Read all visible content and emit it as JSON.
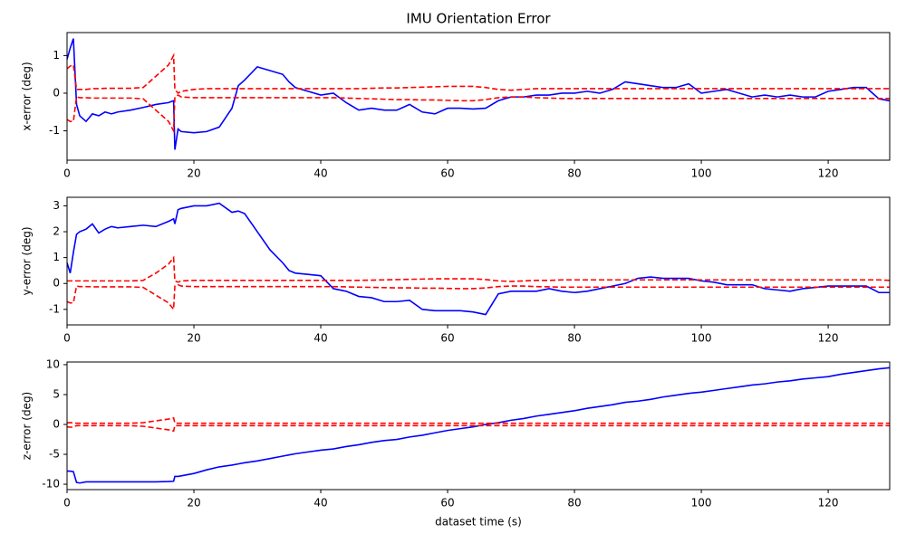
{
  "chart_data": [
    {
      "type": "line",
      "title": "IMU Orientation Error",
      "ylabel": "x-error (deg)",
      "x": [
        0,
        0.5,
        1,
        1.5,
        2,
        3,
        4,
        5,
        6,
        7,
        8,
        10,
        12,
        14,
        16,
        16.8,
        17,
        17.5,
        18,
        20,
        22,
        24,
        26,
        27,
        28,
        30,
        32,
        34,
        35,
        36,
        38,
        40,
        42,
        44,
        46,
        48,
        50,
        52,
        54,
        56,
        58,
        60,
        62,
        64,
        66,
        68,
        70,
        72,
        74,
        76,
        78,
        80,
        82,
        84,
        86,
        88,
        90,
        92,
        94,
        96,
        98,
        100,
        102,
        104,
        106,
        108,
        110,
        112,
        114,
        116,
        118,
        120,
        122,
        124,
        126,
        128,
        129.7
      ],
      "series": [
        {
          "color": "#0000ff",
          "linestyle": "solid",
          "values": [
            0.9,
            1.2,
            1.45,
            -0.3,
            -0.6,
            -0.75,
            -0.55,
            -0.6,
            -0.5,
            -0.55,
            -0.5,
            -0.45,
            -0.38,
            -0.3,
            -0.25,
            -0.2,
            -1.5,
            -0.95,
            -1.02,
            -1.05,
            -1.02,
            -0.9,
            -0.4,
            0.2,
            0.35,
            0.7,
            0.6,
            0.5,
            0.3,
            0.15,
            0.05,
            -0.05,
            0.0,
            -0.25,
            -0.45,
            -0.4,
            -0.45,
            -0.45,
            -0.3,
            -0.5,
            -0.55,
            -0.4,
            -0.4,
            -0.42,
            -0.4,
            -0.2,
            -0.1,
            -0.1,
            -0.05,
            -0.05,
            0.0,
            0.0,
            0.05,
            0.0,
            0.1,
            0.3,
            0.25,
            0.2,
            0.15,
            0.15,
            0.25,
            0.0,
            0.05,
            0.1,
            0.0,
            -0.1,
            -0.05,
            -0.1,
            -0.05,
            -0.1,
            -0.1,
            0.05,
            0.1,
            0.15,
            0.15,
            -0.15,
            -0.2
          ]
        },
        {
          "color": "#ff0000",
          "linestyle": "dashed",
          "values": [
            0.65,
            0.72,
            0.75,
            0.1,
            0.1,
            0.1,
            0.12,
            0.12,
            0.13,
            0.13,
            0.13,
            0.13,
            0.15,
            0.45,
            0.75,
            1.0,
            0.1,
            0.0,
            0.05,
            0.1,
            0.12,
            0.12,
            0.12,
            0.12,
            0.12,
            0.12,
            0.12,
            0.12,
            0.12,
            0.12,
            0.12,
            0.12,
            0.12,
            0.12,
            0.12,
            0.13,
            0.14,
            0.14,
            0.15,
            0.16,
            0.17,
            0.18,
            0.18,
            0.18,
            0.15,
            0.1,
            0.08,
            0.1,
            0.12,
            0.12,
            0.12,
            0.12,
            0.12,
            0.12,
            0.12,
            0.12,
            0.12,
            0.12,
            0.12,
            0.12,
            0.12,
            0.12,
            0.12,
            0.12,
            0.12,
            0.12,
            0.12,
            0.12,
            0.12,
            0.12,
            0.12,
            0.12,
            0.12,
            0.12,
            0.12,
            0.12,
            0.12
          ]
        },
        {
          "color": "#ff0000",
          "linestyle": "dashed",
          "values": [
            -0.7,
            -0.75,
            -0.75,
            -0.1,
            -0.12,
            -0.12,
            -0.13,
            -0.13,
            -0.13,
            -0.13,
            -0.13,
            -0.13,
            -0.15,
            -0.45,
            -0.75,
            -1.0,
            -0.1,
            -0.05,
            -0.1,
            -0.12,
            -0.12,
            -0.12,
            -0.12,
            -0.12,
            -0.12,
            -0.12,
            -0.12,
            -0.12,
            -0.12,
            -0.12,
            -0.12,
            -0.12,
            -0.12,
            -0.13,
            -0.14,
            -0.15,
            -0.16,
            -0.17,
            -0.17,
            -0.18,
            -0.18,
            -0.19,
            -0.2,
            -0.2,
            -0.17,
            -0.12,
            -0.1,
            -0.1,
            -0.12,
            -0.13,
            -0.14,
            -0.14,
            -0.14,
            -0.14,
            -0.14,
            -0.14,
            -0.14,
            -0.14,
            -0.14,
            -0.14,
            -0.14,
            -0.14,
            -0.14,
            -0.14,
            -0.14,
            -0.14,
            -0.14,
            -0.14,
            -0.14,
            -0.14,
            -0.14,
            -0.14,
            -0.14,
            -0.14,
            -0.14,
            -0.14,
            -0.14
          ]
        }
      ],
      "xlim": [
        0,
        129.7
      ],
      "xticks": [
        0,
        20,
        40,
        60,
        80,
        100,
        120
      ],
      "ylim": [
        -1.78,
        1.61
      ],
      "yticks": [
        -1,
        0,
        1
      ],
      "grid": false
    },
    {
      "type": "line",
      "ylabel": "y-error (deg)",
      "x": [
        0,
        0.5,
        1,
        1.5,
        2,
        3,
        4,
        5,
        6,
        7,
        8,
        10,
        12,
        14,
        16,
        16.8,
        17,
        17.5,
        18,
        20,
        22,
        24,
        26,
        27,
        28,
        30,
        32,
        34,
        35,
        36,
        38,
        40,
        42,
        44,
        46,
        48,
        50,
        52,
        54,
        56,
        58,
        60,
        62,
        64,
        66,
        68,
        70,
        72,
        74,
        76,
        78,
        80,
        82,
        84,
        86,
        88,
        90,
        92,
        94,
        96,
        98,
        100,
        102,
        104,
        106,
        108,
        110,
        112,
        114,
        116,
        118,
        120,
        122,
        124,
        126,
        128,
        129.7
      ],
      "series": [
        {
          "color": "#0000ff",
          "linestyle": "solid",
          "values": [
            0.8,
            0.4,
            1.2,
            1.9,
            2.0,
            2.1,
            2.3,
            1.95,
            2.1,
            2.2,
            2.15,
            2.2,
            2.25,
            2.2,
            2.4,
            2.5,
            2.3,
            2.85,
            2.9,
            3.0,
            3.0,
            3.1,
            2.75,
            2.8,
            2.7,
            2.0,
            1.3,
            0.8,
            0.5,
            0.4,
            0.35,
            0.3,
            -0.2,
            -0.3,
            -0.5,
            -0.55,
            -0.7,
            -0.7,
            -0.65,
            -1.0,
            -1.05,
            -1.05,
            -1.05,
            -1.1,
            -1.2,
            -0.4,
            -0.3,
            -0.3,
            -0.3,
            -0.2,
            -0.3,
            -0.35,
            -0.3,
            -0.2,
            -0.1,
            0.0,
            0.2,
            0.25,
            0.2,
            0.2,
            0.2,
            0.1,
            0.05,
            -0.05,
            -0.05,
            -0.05,
            -0.2,
            -0.25,
            -0.3,
            -0.2,
            -0.15,
            -0.1,
            -0.1,
            -0.1,
            -0.1,
            -0.35,
            -0.35
          ]
        },
        {
          "color": "#ff0000",
          "linestyle": "dashed",
          "values": [
            0.1,
            0.1,
            0.1,
            0.1,
            0.1,
            0.1,
            0.1,
            0.1,
            0.1,
            0.1,
            0.1,
            0.1,
            0.12,
            0.4,
            0.75,
            1.0,
            0.1,
            0.05,
            0.1,
            0.12,
            0.12,
            0.12,
            0.12,
            0.12,
            0.12,
            0.12,
            0.12,
            0.12,
            0.12,
            0.12,
            0.12,
            0.12,
            0.12,
            0.12,
            0.12,
            0.13,
            0.14,
            0.15,
            0.16,
            0.17,
            0.18,
            0.18,
            0.18,
            0.18,
            0.15,
            0.1,
            0.08,
            0.1,
            0.12,
            0.12,
            0.14,
            0.14,
            0.14,
            0.14,
            0.14,
            0.14,
            0.14,
            0.14,
            0.14,
            0.14,
            0.14,
            0.14,
            0.14,
            0.14,
            0.14,
            0.14,
            0.14,
            0.14,
            0.14,
            0.14,
            0.14,
            0.14,
            0.14,
            0.14,
            0.14,
            0.14,
            0.12
          ]
        },
        {
          "color": "#ff0000",
          "linestyle": "dashed",
          "values": [
            -0.7,
            -0.75,
            -0.75,
            -0.1,
            -0.12,
            -0.12,
            -0.13,
            -0.13,
            -0.13,
            -0.13,
            -0.13,
            -0.13,
            -0.15,
            -0.45,
            -0.75,
            -1.0,
            -0.1,
            -0.05,
            -0.1,
            -0.12,
            -0.12,
            -0.12,
            -0.12,
            -0.12,
            -0.12,
            -0.12,
            -0.12,
            -0.12,
            -0.12,
            -0.12,
            -0.12,
            -0.12,
            -0.12,
            -0.13,
            -0.14,
            -0.15,
            -0.16,
            -0.17,
            -0.17,
            -0.18,
            -0.18,
            -0.19,
            -0.2,
            -0.2,
            -0.17,
            -0.12,
            -0.1,
            -0.1,
            -0.12,
            -0.13,
            -0.14,
            -0.14,
            -0.14,
            -0.14,
            -0.14,
            -0.14,
            -0.14,
            -0.14,
            -0.14,
            -0.14,
            -0.14,
            -0.14,
            -0.14,
            -0.14,
            -0.14,
            -0.14,
            -0.14,
            -0.14,
            -0.14,
            -0.14,
            -0.14,
            -0.14,
            -0.14,
            -0.14,
            -0.14,
            -0.14,
            -0.14
          ]
        }
      ],
      "xlim": [
        0,
        129.7
      ],
      "xticks": [
        0,
        20,
        40,
        60,
        80,
        100,
        120
      ],
      "ylim": [
        -1.6,
        3.33
      ],
      "yticks": [
        -1,
        0,
        1,
        2,
        3
      ],
      "grid": false
    },
    {
      "type": "line",
      "ylabel": "z-error (deg)",
      "xlabel": "dataset time (s)",
      "x": [
        0,
        0.5,
        1,
        1.5,
        2,
        3,
        4,
        5,
        6,
        7,
        8,
        10,
        12,
        14,
        16,
        16.8,
        17,
        17.5,
        18,
        20,
        22,
        24,
        26,
        27,
        28,
        30,
        32,
        34,
        35,
        36,
        38,
        40,
        42,
        44,
        46,
        48,
        50,
        52,
        54,
        56,
        58,
        60,
        62,
        64,
        66,
        68,
        70,
        72,
        74,
        76,
        78,
        80,
        82,
        84,
        86,
        88,
        90,
        92,
        94,
        96,
        98,
        100,
        102,
        104,
        106,
        108,
        110,
        112,
        114,
        116,
        118,
        120,
        122,
        124,
        126,
        128,
        129.7
      ],
      "series": [
        {
          "color": "#0000ff",
          "linestyle": "solid",
          "values": [
            -7.8,
            -7.8,
            -7.9,
            -9.7,
            -9.8,
            -9.6,
            -9.6,
            -9.6,
            -9.6,
            -9.6,
            -9.6,
            -9.6,
            -9.6,
            -9.6,
            -9.55,
            -9.5,
            -8.7,
            -8.7,
            -8.6,
            -8.2,
            -7.6,
            -7.1,
            -6.8,
            -6.6,
            -6.4,
            -6.1,
            -5.7,
            -5.3,
            -5.1,
            -4.9,
            -4.6,
            -4.3,
            -4.1,
            -3.7,
            -3.4,
            -3.0,
            -2.7,
            -2.5,
            -2.1,
            -1.8,
            -1.4,
            -1.0,
            -0.7,
            -0.4,
            0.0,
            0.3,
            0.7,
            1.0,
            1.4,
            1.7,
            2.0,
            2.3,
            2.7,
            3.0,
            3.3,
            3.7,
            3.9,
            4.2,
            4.6,
            4.9,
            5.2,
            5.4,
            5.7,
            6.0,
            6.3,
            6.6,
            6.8,
            7.1,
            7.3,
            7.6,
            7.8,
            8.0,
            8.4,
            8.7,
            9.0,
            9.3,
            9.5
          ]
        },
        {
          "color": "#ff0000",
          "linestyle": "dashed",
          "values": [
            0.3,
            0.3,
            0.3,
            0.2,
            0.2,
            0.2,
            0.2,
            0.2,
            0.2,
            0.2,
            0.2,
            0.2,
            0.3,
            0.6,
            0.9,
            1.1,
            0.2,
            0.2,
            0.2,
            0.2,
            0.2,
            0.2,
            0.2,
            0.2,
            0.2,
            0.2,
            0.2,
            0.2,
            0.2,
            0.2,
            0.2,
            0.2,
            0.2,
            0.2,
            0.2,
            0.2,
            0.2,
            0.2,
            0.2,
            0.2,
            0.2,
            0.2,
            0.2,
            0.2,
            0.2,
            0.2,
            0.2,
            0.2,
            0.2,
            0.2,
            0.2,
            0.2,
            0.2,
            0.2,
            0.2,
            0.2,
            0.2,
            0.2,
            0.2,
            0.2,
            0.2,
            0.2,
            0.2,
            0.2,
            0.2,
            0.2,
            0.2,
            0.2,
            0.2,
            0.2,
            0.2,
            0.2,
            0.2,
            0.2,
            0.2,
            0.2,
            0.2
          ]
        },
        {
          "color": "#ff0000",
          "linestyle": "dashed",
          "values": [
            -0.4,
            -0.45,
            -0.45,
            -0.2,
            -0.2,
            -0.2,
            -0.2,
            -0.2,
            -0.2,
            -0.2,
            -0.2,
            -0.2,
            -0.3,
            -0.6,
            -0.9,
            -1.1,
            -0.2,
            -0.2,
            -0.2,
            -0.2,
            -0.2,
            -0.2,
            -0.2,
            -0.2,
            -0.2,
            -0.2,
            -0.2,
            -0.2,
            -0.2,
            -0.2,
            -0.2,
            -0.2,
            -0.2,
            -0.2,
            -0.2,
            -0.2,
            -0.2,
            -0.2,
            -0.2,
            -0.2,
            -0.2,
            -0.2,
            -0.2,
            -0.2,
            -0.2,
            -0.2,
            -0.2,
            -0.2,
            -0.2,
            -0.2,
            -0.2,
            -0.2,
            -0.2,
            -0.2,
            -0.2,
            -0.2,
            -0.2,
            -0.2,
            -0.2,
            -0.2,
            -0.2,
            -0.2,
            -0.2,
            -0.2,
            -0.2,
            -0.2,
            -0.2,
            -0.2,
            -0.2,
            -0.2,
            -0.2,
            -0.2,
            -0.2,
            -0.2,
            -0.2,
            -0.2,
            -0.2
          ]
        }
      ],
      "xlim": [
        0,
        129.7
      ],
      "xticks": [
        0,
        20,
        40,
        60,
        80,
        100,
        120
      ],
      "ylim": [
        -10.9,
        10.45
      ],
      "yticks": [
        -10,
        -5,
        0,
        5,
        10
      ],
      "grid": false
    }
  ]
}
